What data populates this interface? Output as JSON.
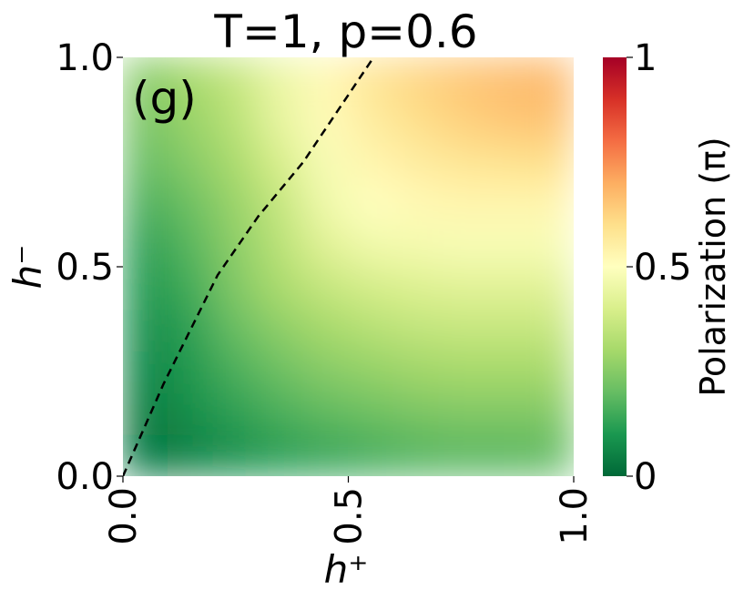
{
  "chart_data": {
    "type": "heatmap",
    "title": "T=1, p=0.6",
    "annotation": "(g)",
    "x_label": "h⁺",
    "y_label": "h⁻",
    "colorbar_label": "Polarization (π)",
    "colormap": [
      "#006837",
      "#1a9850",
      "#66bd63",
      "#a6d96a",
      "#d9ef8b",
      "#ffffbf",
      "#fee08b",
      "#fdae61",
      "#f46d43",
      "#d73027",
      "#a50026"
    ],
    "x": [
      0.05,
      0.15,
      0.25,
      0.35,
      0.45,
      0.55,
      0.65,
      0.75,
      0.85,
      0.95
    ],
    "y": [
      0.05,
      0.15,
      0.25,
      0.35,
      0.45,
      0.55,
      0.65,
      0.75,
      0.85,
      0.95
    ],
    "z": [
      [
        0.02,
        0.05,
        0.08,
        0.11,
        0.13,
        0.15,
        0.17,
        0.18,
        0.18,
        0.19
      ],
      [
        0.04,
        0.08,
        0.12,
        0.16,
        0.19,
        0.21,
        0.23,
        0.24,
        0.24,
        0.24
      ],
      [
        0.06,
        0.1,
        0.16,
        0.21,
        0.25,
        0.27,
        0.29,
        0.3,
        0.3,
        0.3
      ],
      [
        0.08,
        0.12,
        0.2,
        0.26,
        0.3,
        0.33,
        0.35,
        0.36,
        0.36,
        0.36
      ],
      [
        0.1,
        0.15,
        0.24,
        0.31,
        0.36,
        0.39,
        0.41,
        0.42,
        0.42,
        0.42
      ],
      [
        0.12,
        0.18,
        0.26,
        0.34,
        0.42,
        0.46,
        0.47,
        0.48,
        0.48,
        0.48
      ],
      [
        0.16,
        0.21,
        0.28,
        0.36,
        0.46,
        0.5,
        0.52,
        0.53,
        0.53,
        0.53
      ],
      [
        0.2,
        0.25,
        0.31,
        0.4,
        0.48,
        0.53,
        0.56,
        0.58,
        0.59,
        0.6
      ],
      [
        0.23,
        0.28,
        0.34,
        0.44,
        0.51,
        0.56,
        0.6,
        0.63,
        0.65,
        0.66
      ],
      [
        0.25,
        0.3,
        0.36,
        0.45,
        0.52,
        0.58,
        0.62,
        0.65,
        0.67,
        0.68
      ]
    ],
    "boundary": {
      "x": [
        0,
        0.09,
        0.21,
        0.3,
        0.4,
        0.556
      ],
      "y": [
        0,
        0.22,
        0.48,
        0.62,
        0.75,
        1.0
      ]
    },
    "xlim": [
      0,
      1
    ],
    "ylim": [
      0,
      1
    ],
    "clim": [
      0,
      1
    ],
    "xticks": [
      {
        "value": 0,
        "label": "0.0"
      },
      0.5,
      {
        "value": 1,
        "label": "1.0"
      }
    ],
    "yticks": [
      {
        "value": 0,
        "label": "0.0"
      },
      0.5,
      {
        "value": 1,
        "label": "1.0"
      }
    ],
    "cticks": [
      0,
      0.5,
      1
    ]
  }
}
